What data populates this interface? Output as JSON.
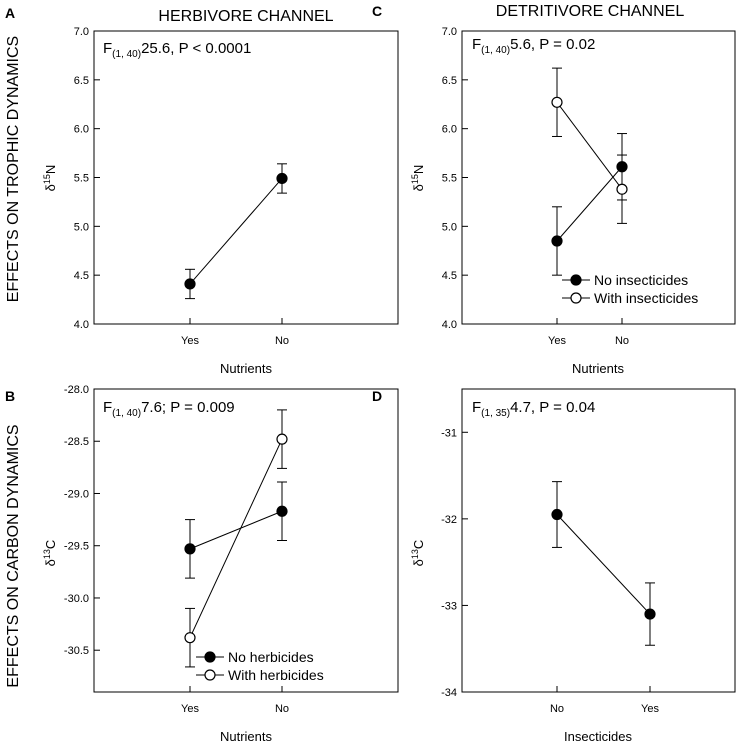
{
  "figure": {
    "row_labels": [
      "EFFECTS ON TROPHIC DYNAMICS",
      "EFFECTS ON CARBON DYNAMICS"
    ],
    "column_titles": [
      "HERBIVORE CHANNEL",
      "DETRITIVORE CHANNEL"
    ]
  },
  "chart_data": [
    {
      "panel": "A",
      "type": "line",
      "xlabel": "Nutrients",
      "ylabel": {
        "main": "δ",
        "sup": "15",
        "tail": "N"
      },
      "categories": [
        "Yes",
        "No"
      ],
      "ylim": [
        4.0,
        7.0
      ],
      "yticks": [
        4.0,
        4.5,
        5.0,
        5.5,
        6.0,
        6.5,
        7.0
      ],
      "ytick_labels": [
        "4.0",
        "4.5",
        "5.0",
        "5.5",
        "6.0",
        "6.5",
        "7.0"
      ],
      "stat": {
        "prefix": "F",
        "sub": "(1, 40)",
        "rest": "25.6, P < 0.0001"
      },
      "series": [
        {
          "name": "",
          "marker": "filled",
          "values": [
            4.41,
            5.49
          ],
          "errors": [
            0.15,
            0.15
          ]
        }
      ],
      "legend": null
    },
    {
      "panel": "C",
      "type": "line",
      "xlabel": "Nutrients",
      "ylabel": {
        "main": "δ",
        "sup": "15",
        "tail": "N"
      },
      "categories": [
        "Yes",
        "No"
      ],
      "ylim": [
        4.0,
        7.0
      ],
      "yticks": [
        4.0,
        4.5,
        5.0,
        5.5,
        6.0,
        6.5,
        7.0
      ],
      "ytick_labels": [
        "4.0",
        "4.5",
        "5.0",
        "5.5",
        "6.0",
        "6.5",
        "7.0"
      ],
      "stat": {
        "prefix": "F",
        "sub": "(1, 40)",
        "rest": "5.6, P = 0.02"
      },
      "series": [
        {
          "name": "No insecticides",
          "marker": "filled",
          "values": [
            4.85,
            5.61
          ],
          "errors": [
            0.35,
            0.34
          ]
        },
        {
          "name": "With insecticides",
          "marker": "open",
          "values": [
            6.27,
            5.38
          ],
          "errors": [
            0.35,
            0.35
          ]
        }
      ],
      "legend": "lower-right"
    },
    {
      "panel": "B",
      "type": "line",
      "xlabel": "Nutrients",
      "ylabel": {
        "main": "δ",
        "sup": "13",
        "tail": "C"
      },
      "categories": [
        "Yes",
        "No"
      ],
      "ylim": [
        -30.9,
        -28.0
      ],
      "yticks": [
        -30.5,
        -30.0,
        -29.5,
        -29.0,
        -28.5,
        -28.0
      ],
      "ytick_labels": [
        "-30.5",
        "-30.0",
        "-29.5",
        "-29.0",
        "-28.5",
        "-28.0"
      ],
      "stat": {
        "prefix": "F",
        "sub": "(1, 40)",
        "rest": "7.6; P = 0.009"
      },
      "series": [
        {
          "name": "No herbicides",
          "marker": "filled",
          "values": [
            -29.53,
            -29.17
          ],
          "errors": [
            0.28,
            0.28
          ]
        },
        {
          "name": "With herbicides",
          "marker": "open",
          "values": [
            -30.38,
            -28.48
          ],
          "errors": [
            0.28,
            0.28
          ]
        }
      ],
      "legend": "lower-right"
    },
    {
      "panel": "D",
      "type": "line",
      "xlabel": "Insecticides",
      "ylabel": {
        "main": "δ",
        "sup": "13",
        "tail": "C"
      },
      "categories": [
        "No",
        "Yes"
      ],
      "ylim": [
        -34.0,
        -30.5
      ],
      "yticks": [
        -34,
        -33,
        -32,
        -31
      ],
      "ytick_labels": [
        "-34",
        "-33",
        "-32",
        "-31"
      ],
      "stat": {
        "prefix": "F",
        "sub": "(1, 35)",
        "rest": "4.7, P = 0.04"
      },
      "series": [
        {
          "name": "",
          "marker": "filled",
          "values": [
            -31.95,
            -33.1
          ],
          "errors": [
            0.38,
            0.36
          ]
        }
      ],
      "legend": null
    }
  ]
}
